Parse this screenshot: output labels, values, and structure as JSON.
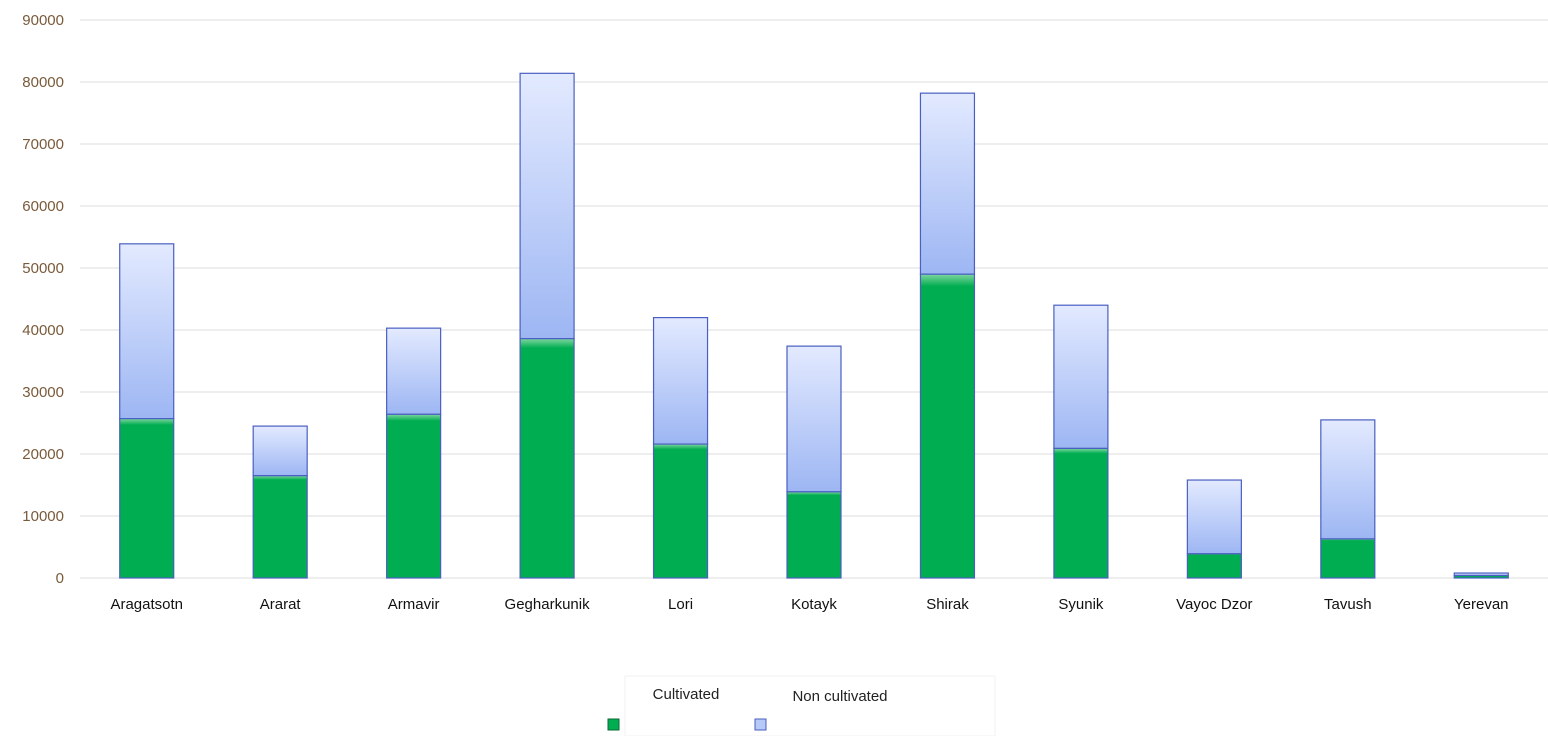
{
  "chart_data": {
    "type": "bar",
    "stacked": true,
    "title": "",
    "xlabel": "",
    "ylabel": "",
    "ylim": [
      0,
      90000
    ],
    "yticks": [
      0,
      10000,
      20000,
      30000,
      40000,
      50000,
      60000,
      70000,
      80000,
      90000
    ],
    "grid": true,
    "legend_position": "bottom",
    "categories": [
      "Aragatsotn",
      "Ararat",
      "Armavir",
      "Gegharkunik",
      "Lori",
      "Kotayk",
      "Shirak",
      "Syunik",
      "Vayoc Dzor",
      "Tavush",
      "Yerevan"
    ],
    "series": [
      {
        "name": "Cultivated",
        "color": "#00ad50",
        "values": [
          25700,
          16500,
          26400,
          38600,
          21600,
          13900,
          49000,
          20900,
          3900,
          6300,
          400
        ]
      },
      {
        "name": "Non cultivated",
        "color": "#a9bff5",
        "values": [
          28200,
          8000,
          13900,
          42800,
          20400,
          23500,
          29200,
          23100,
          11900,
          19200,
          400
        ]
      }
    ]
  }
}
